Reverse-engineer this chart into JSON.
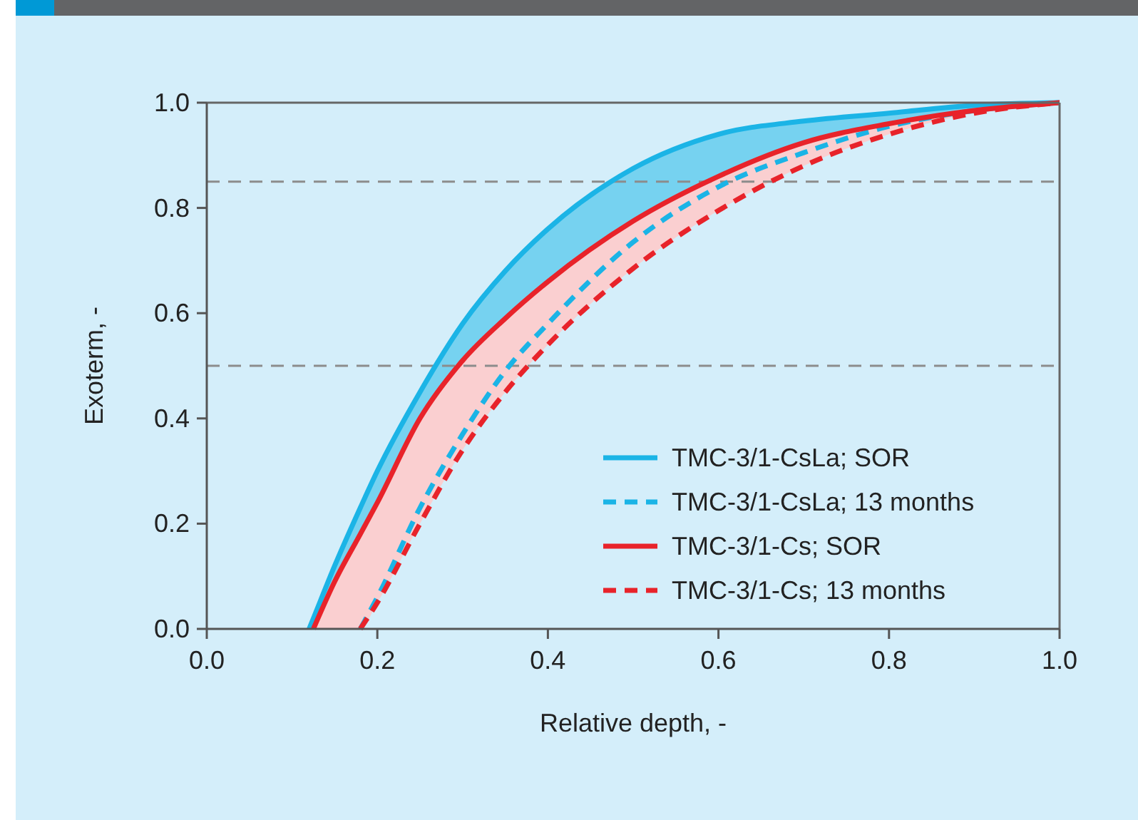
{
  "chart_data": {
    "type": "line",
    "xlabel": "Relative depth, -",
    "ylabel": "Exoterm, -",
    "x": [
      0.12,
      0.125,
      0.15,
      0.18,
      0.2,
      0.25,
      0.3,
      0.35,
      0.4,
      0.5,
      0.6,
      0.7,
      0.8,
      0.9,
      1.0
    ],
    "series": [
      {
        "name": "TMC-3/1-CsLa; SOR",
        "color": "#1bb4e6",
        "line_style": "solid",
        "values": [
          0,
          0.02,
          0.12,
          0.23,
          0.3,
          0.45,
          0.58,
          0.68,
          0.76,
          0.875,
          0.94,
          0.965,
          0.98,
          0.995,
          1
        ],
        "lower": [
          0,
          0,
          0.09,
          0.18,
          0.24,
          0.4,
          0.51,
          0.59,
          0.66,
          0.775,
          0.86,
          0.924,
          0.96,
          0.985,
          1
        ],
        "upper": [
          0,
          0.02,
          0.12,
          0.23,
          0.3,
          0.45,
          0.58,
          0.68,
          0.76,
          0.875,
          0.94,
          0.965,
          0.98,
          0.995,
          1
        ]
      },
      {
        "name": "TMC-3/1-CsLa; 13 months",
        "color": "#1bb4e6",
        "line_style": "dashed",
        "values": [
          null,
          null,
          null,
          0,
          0.06,
          0.23,
          0.37,
          0.49,
          0.58,
          0.735,
          0.84,
          0.905,
          0.955,
          0.985,
          1
        ]
      },
      {
        "name": "TMC-3/1-Cs; SOR",
        "color": "#e8232a",
        "line_style": "solid",
        "values": [
          null,
          0,
          0.09,
          0.18,
          0.24,
          0.4,
          0.51,
          0.59,
          0.66,
          0.775,
          0.86,
          0.924,
          0.96,
          0.985,
          1
        ],
        "lower": [
          null,
          0,
          0,
          0,
          0.05,
          0.2,
          0.34,
          0.45,
          0.54,
          0.685,
          0.795,
          0.88,
          0.94,
          0.98,
          1
        ],
        "upper": [
          null,
          0,
          0.09,
          0.18,
          0.24,
          0.4,
          0.51,
          0.59,
          0.66,
          0.775,
          0.86,
          0.924,
          0.96,
          0.985,
          1
        ]
      },
      {
        "name": "TMC-3/1-Cs; 13 months",
        "color": "#e8232a",
        "line_style": "dashed",
        "values": [
          null,
          null,
          null,
          0,
          0.05,
          0.2,
          0.34,
          0.45,
          0.54,
          0.685,
          0.795,
          0.88,
          0.94,
          0.98,
          1
        ]
      }
    ],
    "xlim": [
      0,
      1
    ],
    "ylim": [
      0,
      1
    ],
    "xticks": [
      {
        "value": 0,
        "label": "0.0"
      },
      {
        "value": 0.2,
        "label": "0.2"
      },
      {
        "value": 0.4,
        "label": "0.4"
      },
      {
        "value": 0.6,
        "label": "0.6"
      },
      {
        "value": 0.8,
        "label": "0.8"
      },
      {
        "value": 1,
        "label": "1.0"
      }
    ],
    "yticks": [
      {
        "value": 0,
        "label": "0.0"
      },
      {
        "value": 0.2,
        "label": "0.2"
      },
      {
        "value": 0.4,
        "label": "0.4"
      },
      {
        "value": 0.6,
        "label": "0.6"
      },
      {
        "value": 0.8,
        "label": "0.8"
      },
      {
        "value": 1,
        "label": "1.0"
      }
    ],
    "ref_lines": [
      {
        "axis": "y",
        "value": 0.85,
        "color": "#8c8c8c",
        "line_style": "dashed"
      },
      {
        "axis": "y",
        "value": 0.5,
        "color": "#8c8c8c",
        "line_style": "dashed"
      }
    ],
    "grid": false,
    "legend": "bottom right",
    "marker": "none"
  }
}
